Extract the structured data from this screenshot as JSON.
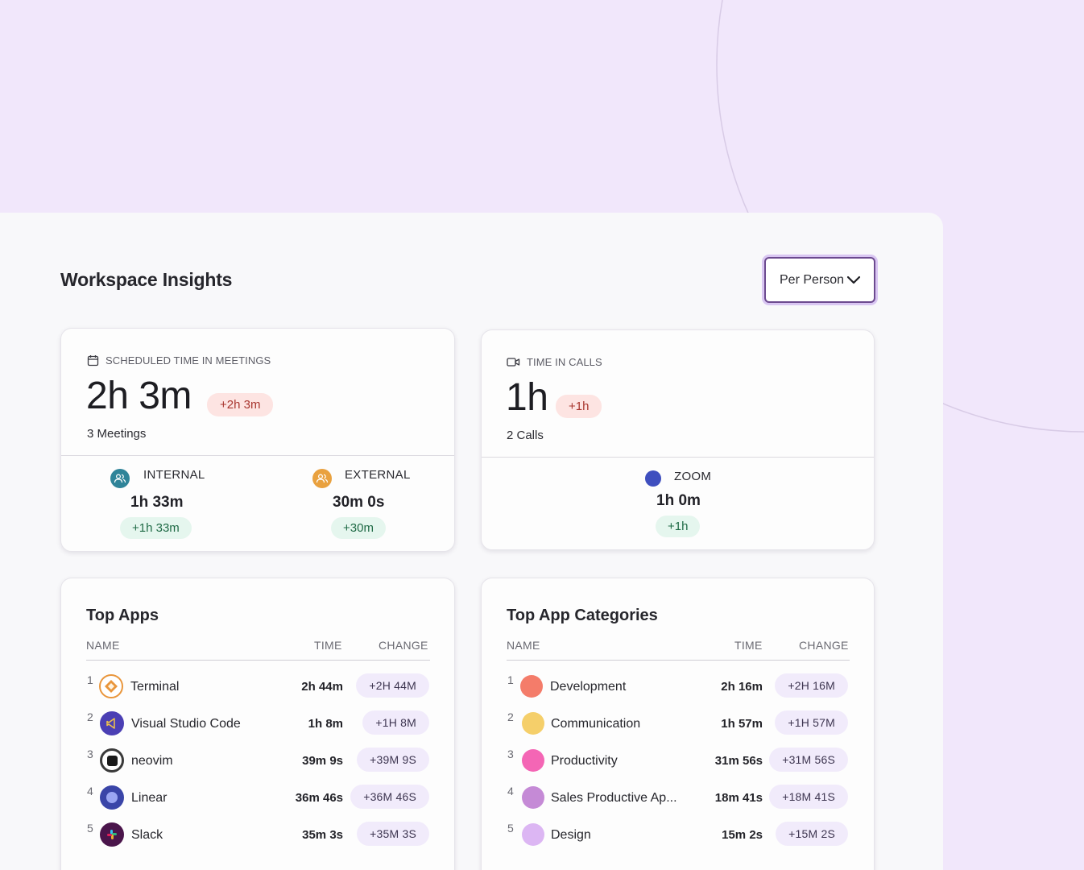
{
  "header": {
    "title": "Workspace Insights",
    "view_select": "Per Person"
  },
  "meetings": {
    "label": "SCHEDULED TIME IN MEETINGS",
    "value": "2h 3m",
    "change": "+2h 3m",
    "count": "3 Meetings",
    "internal": {
      "label": "INTERNAL",
      "value": "1h 33m",
      "change": "+1h 33m"
    },
    "external": {
      "label": "EXTERNAL",
      "value": "30m 0s",
      "change": "+30m"
    }
  },
  "calls": {
    "label": "TIME IN CALLS",
    "value": "1h",
    "change": "+1h",
    "count": "2 Calls",
    "zoom": {
      "label": "ZOOM",
      "value": "1h 0m",
      "change": "+1h"
    }
  },
  "top_apps": {
    "title": "Top Apps",
    "columns": {
      "name": "NAME",
      "time": "TIME",
      "change": "CHANGE"
    },
    "rows": [
      {
        "rank": "1",
        "name": "Terminal",
        "time": "2h 44m",
        "change": "+2H 44M",
        "icon": "terminal-icon"
      },
      {
        "rank": "2",
        "name": "Visual Studio Code",
        "time": "1h 8m",
        "change": "+1H 8M",
        "icon": "vscode-icon"
      },
      {
        "rank": "3",
        "name": "neovim",
        "time": "39m 9s",
        "change": "+39M 9S",
        "icon": "neovim-icon"
      },
      {
        "rank": "4",
        "name": "Linear",
        "time": "36m 46s",
        "change": "+36M 46S",
        "icon": "linear-icon"
      },
      {
        "rank": "5",
        "name": "Slack",
        "time": "35m 3s",
        "change": "+35M 3S",
        "icon": "slack-icon"
      }
    ]
  },
  "top_categories": {
    "title": "Top App Categories",
    "columns": {
      "name": "NAME",
      "time": "TIME",
      "change": "CHANGE"
    },
    "rows": [
      {
        "rank": "1",
        "name": "Development",
        "time": "2h 16m",
        "change": "+2H 16M",
        "color": "#f47c6a"
      },
      {
        "rank": "2",
        "name": "Communication",
        "time": "1h 57m",
        "change": "+1H 57M",
        "color": "#f5cf6a"
      },
      {
        "rank": "3",
        "name": "Productivity",
        "time": "31m 56s",
        "change": "+31M 56S",
        "color": "#f466b5"
      },
      {
        "rank": "4",
        "name": "Sales Productive Ap...",
        "time": "18m 41s",
        "change": "+18M 41S",
        "color": "#c58ad6"
      },
      {
        "rank": "5",
        "name": "Design",
        "time": "15m 2s",
        "change": "+15M 2S",
        "color": "#dcb6f3"
      }
    ]
  },
  "colors": {
    "background": "#f1e7fb",
    "panel": "#f8f8fa",
    "accent": "#6c4a8f",
    "internal_icon": "#2f8499",
    "external_icon": "#e9a13f",
    "zoom_dot": "#3f4fbf"
  }
}
